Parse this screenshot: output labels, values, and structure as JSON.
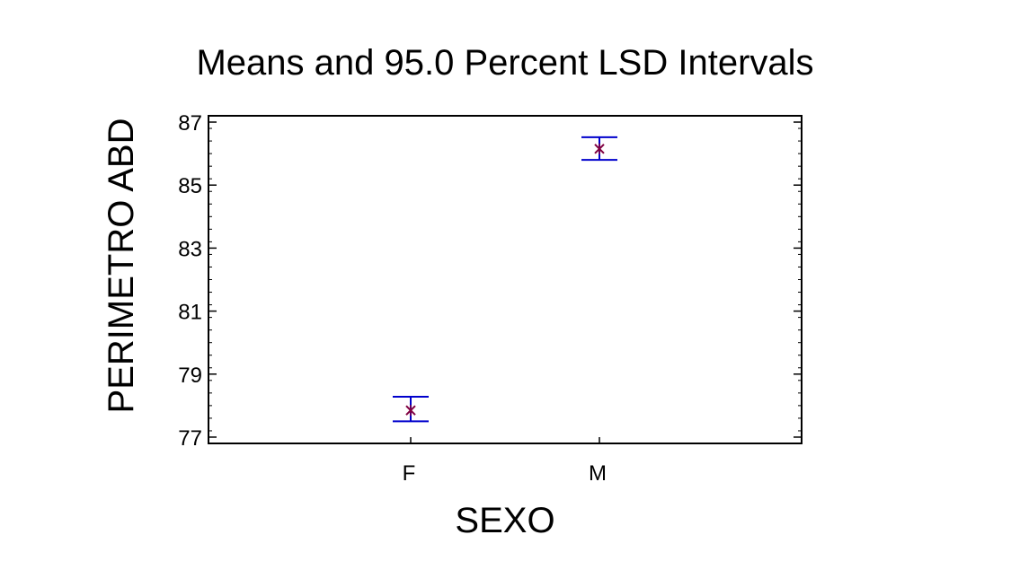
{
  "chart_data": {
    "type": "scatter",
    "title": "Means and 95.0 Percent LSD Intervals",
    "xlabel": "SEXO",
    "ylabel": "PERIMETRO ABD",
    "categories": [
      "F",
      "M"
    ],
    "series": [
      {
        "means": [
          77.85,
          86.15
        ],
        "lower": [
          77.5,
          85.8
        ],
        "upper": [
          78.28,
          86.52
        ]
      }
    ],
    "ylim": [
      76.8,
      87.2
    ],
    "yticks": [
      77,
      79,
      81,
      83,
      85,
      87
    ],
    "ytick_labels": [
      "77",
      "79",
      "81",
      "83",
      "85",
      "87"
    ],
    "grid": false,
    "legend": "none",
    "colors": {
      "interval": "#0000cc",
      "marker": "#800040",
      "frame": "#000000"
    }
  }
}
